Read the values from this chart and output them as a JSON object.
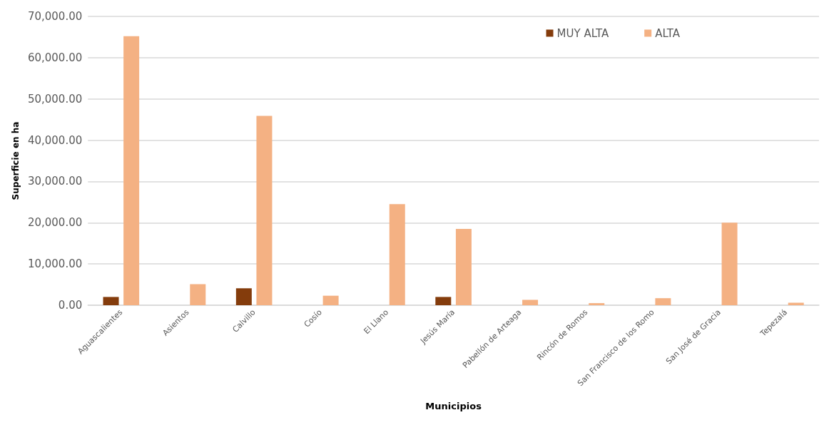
{
  "chart_data": {
    "type": "bar",
    "xlabel": "Municipios",
    "ylabel": "Superficie en ha",
    "categories": [
      "Aguascalientes",
      "Asientos",
      "Calvillo",
      "Cosío",
      "El Llano",
      "Jesús María",
      "Pabellón de Arteaga",
      "Rincón de Romos",
      "San Francisco de los Romo",
      "San José de Gracia",
      "Tepezalá"
    ],
    "series": [
      {
        "name": "MUY ALTA",
        "color": "#843c0c",
        "values": [
          2000,
          null,
          4100,
          null,
          null,
          2000,
          null,
          null,
          null,
          null,
          null
        ]
      },
      {
        "name": "ALTA",
        "color": "#f4b183",
        "values": [
          65200,
          5100,
          45900,
          2300,
          24500,
          18500,
          1300,
          500,
          1700,
          20000,
          600
        ]
      }
    ],
    "ylim": [
      0,
      70000
    ],
    "yticks": [
      {
        "value": 0,
        "label": "0.00"
      },
      {
        "value": 10000,
        "label": "10,000.00"
      },
      {
        "value": 20000,
        "label": "20,000.00"
      },
      {
        "value": 30000,
        "label": "30,000.00"
      },
      {
        "value": 40000,
        "label": "40,000.00"
      },
      {
        "value": 50000,
        "label": "50,000.00"
      },
      {
        "value": 60000,
        "label": "60,000.00"
      },
      {
        "value": 70000,
        "label": "70,000.00"
      }
    ],
    "grid": "y",
    "legend": "top right"
  }
}
